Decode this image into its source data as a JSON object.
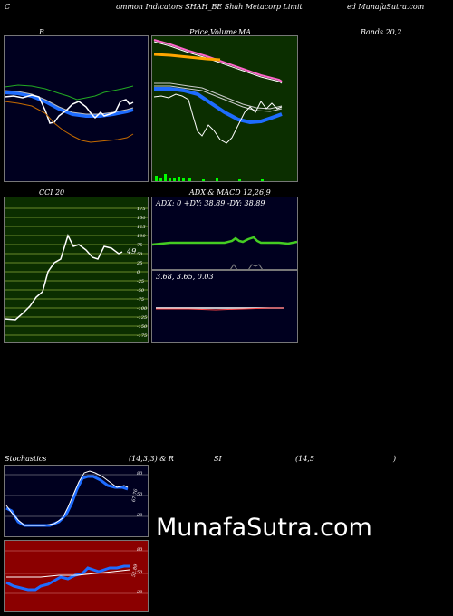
{
  "header": {
    "left": "C",
    "center": "ommon  Indicators SHAH_BE Shah Metacorp Limit",
    "right": "ed MunafaSutra.com"
  },
  "bollinger": {
    "title": "B"
  },
  "price_ma": {
    "title_price": "Price,",
    "title_volume": "Volume",
    "title_ma": "MA"
  },
  "bands_label": "Bands 20,2",
  "cci": {
    "title": "CCI 20",
    "current": "49",
    "ticks": [
      "175",
      "150",
      "125",
      "100",
      "75",
      "50",
      "25",
      "0",
      "-25",
      "-50",
      "-75",
      "-100",
      "-125",
      "-150",
      "-175"
    ]
  },
  "adx_macd": {
    "title": "ADX  & MACD 12,26,9",
    "adx_label": "ADX: 0  +DY: 38.89 -DY: 38.89",
    "macd_label": "3.68,  3.65,  0.03"
  },
  "stoch_rsi": {
    "title_left": "Stochastics",
    "title_mid": "(14,3,3) & R",
    "title_si": "SI",
    "title_right": "(14,5",
    "title_paren": ")",
    "stoch_ticks": [
      "80",
      "50",
      "20"
    ],
    "stoch_value": "67.76",
    "rsi_ticks": [
      "80",
      "50",
      "20"
    ],
    "rsi_value": "52.89"
  },
  "watermark": "MunafaSutra.com",
  "colors": {
    "green_panel": "#0b2e00",
    "navy_panel": "#00001f",
    "red_panel": "#8b0000",
    "accent_blue": "#1e6cff"
  }
}
